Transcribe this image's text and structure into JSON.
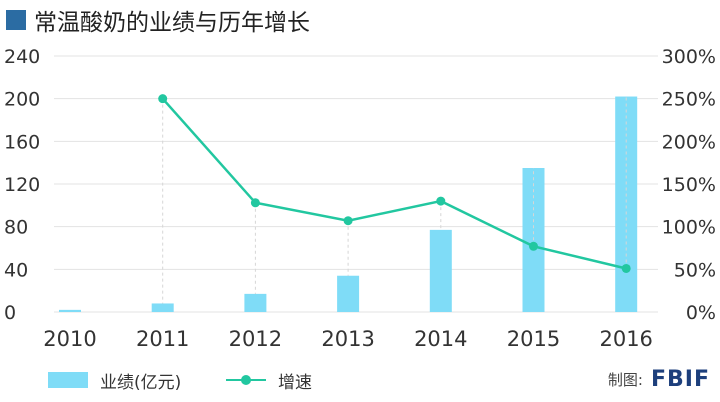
{
  "title": "常温酸奶的业绩与历年增长",
  "chart_data": {
    "type": "bar",
    "categories": [
      "2010",
      "2011",
      "2012",
      "2013",
      "2014",
      "2015",
      "2016"
    ],
    "series": [
      {
        "name": "业绩(亿元)",
        "type": "bar",
        "axis": "left",
        "color": "#7fdcf7",
        "values": [
          2,
          8,
          17,
          34,
          77,
          135,
          202
        ]
      },
      {
        "name": "增速",
        "type": "line",
        "axis": "right",
        "color": "#22c7a0",
        "values": [
          null,
          250,
          128,
          107,
          130,
          77,
          51
        ]
      }
    ],
    "y_left": {
      "min": 0,
      "max": 240,
      "ticks": [
        0,
        40,
        80,
        120,
        160,
        200,
        240
      ]
    },
    "y_right": {
      "min": 0,
      "max": 300,
      "unit": "%",
      "ticks": [
        0,
        50,
        100,
        150,
        200,
        250,
        300
      ]
    },
    "grid": true,
    "legend_position": "bottom-left"
  },
  "legend": {
    "bar_label": "业绩(亿元)",
    "line_label": "增速"
  },
  "credit": {
    "label": "制图:",
    "brand": "FBIF"
  },
  "colors": {
    "title_mark": "#2b6ca3",
    "grid": "#e3e3e3",
    "axis_text": "#333333"
  }
}
